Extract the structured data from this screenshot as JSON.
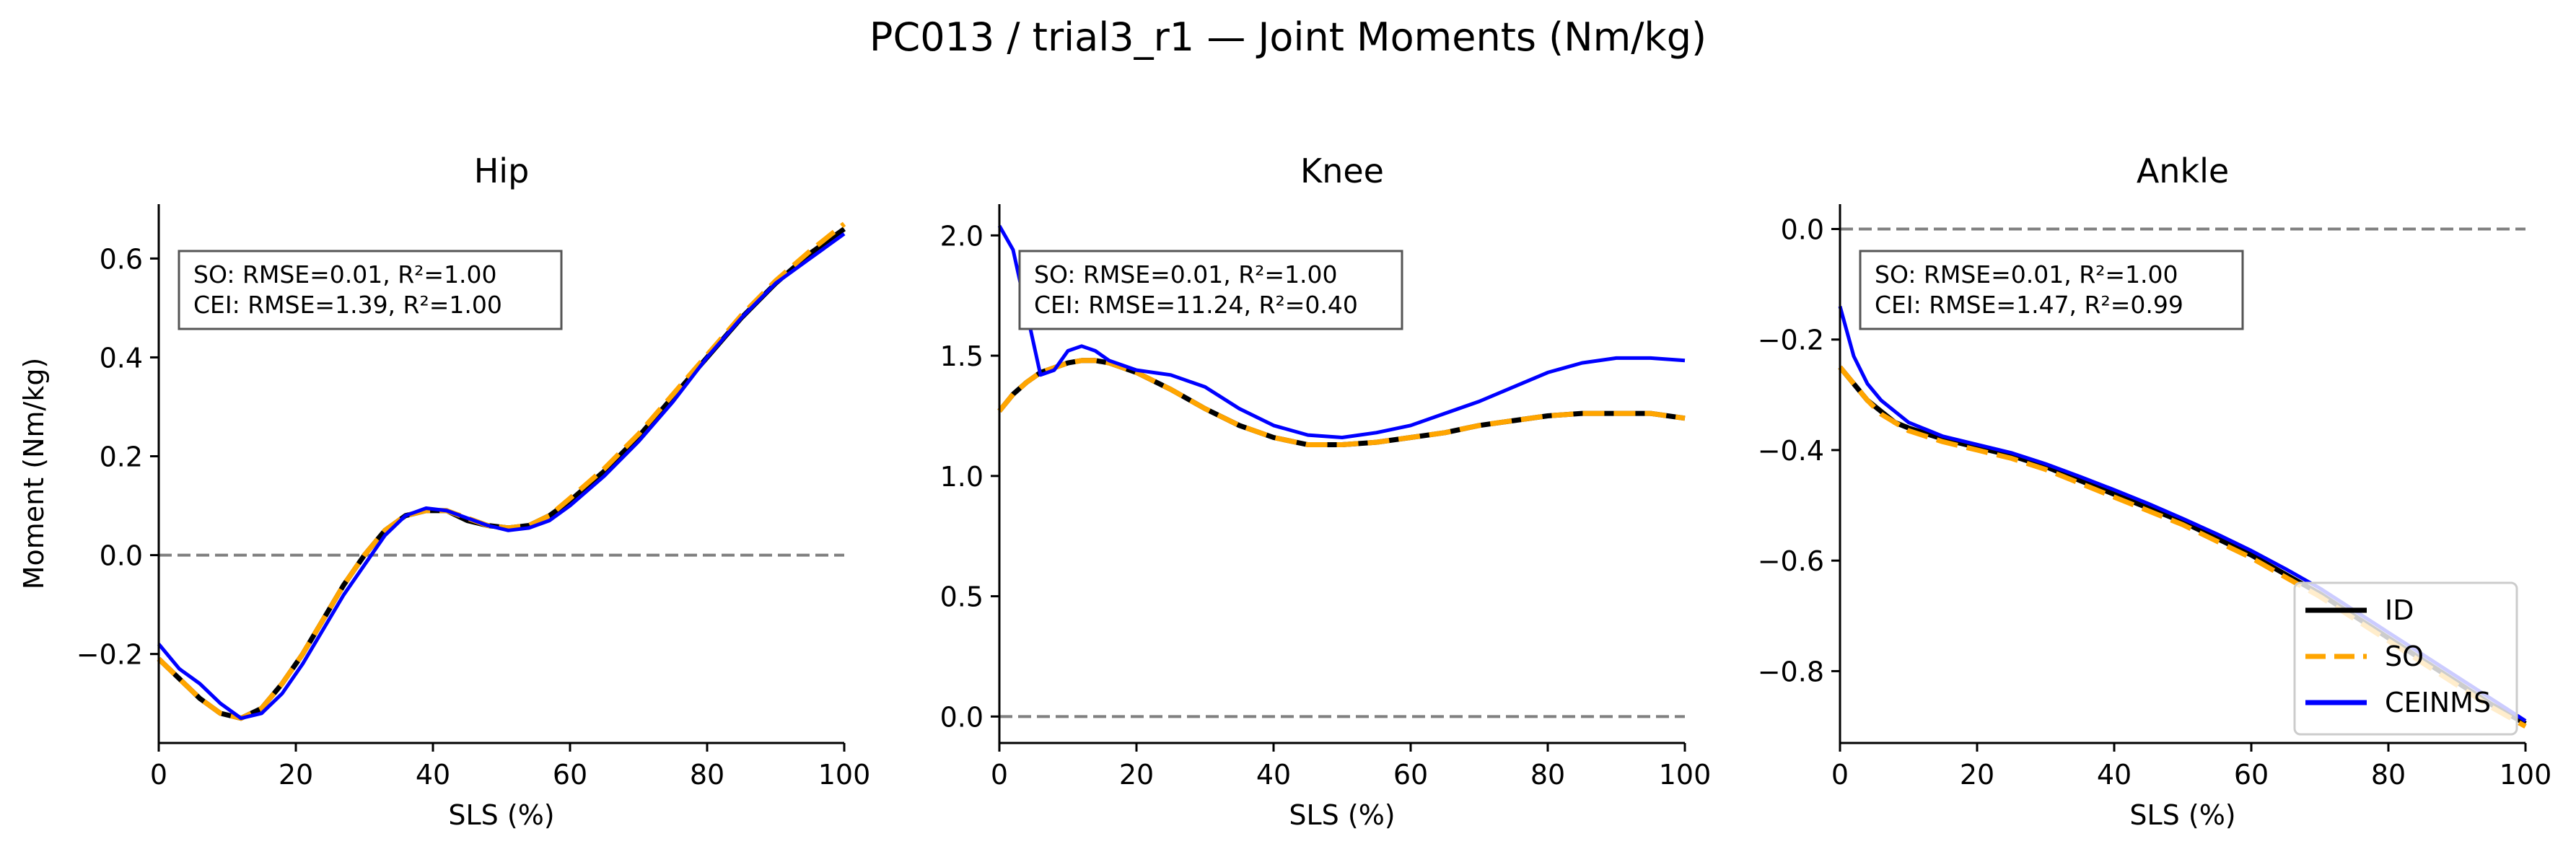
{
  "chart_data": {
    "suptitle": "PC013 / trial3_r1 — Joint Moments (Nm/kg)",
    "colors": {
      "ID": "#000000",
      "SO": "#FFA500",
      "CEINMS": "#0000FF",
      "zero_line": "#808080"
    },
    "legend": {
      "placement": "lower-right of Ankle panel",
      "entries": [
        {
          "name": "ID",
          "style": "solid"
        },
        {
          "name": "SO",
          "style": "dashed"
        },
        {
          "name": "CEINMS",
          "style": "solid"
        }
      ]
    },
    "panels": [
      {
        "type": "line",
        "title": "Hip",
        "xlabel": "SLS (%)",
        "ylabel": "Moment (Nm/kg)",
        "xlim": [
          0,
          100
        ],
        "ylim": [
          -0.38,
          0.71
        ],
        "xticks": [
          0,
          20,
          40,
          60,
          80,
          100
        ],
        "xtick_labels": [
          "0",
          "20",
          "40",
          "60",
          "80",
          "100"
        ],
        "yticks": [
          -0.2,
          0.0,
          0.2,
          0.4,
          0.6
        ],
        "ytick_labels": [
          "−0.2",
          "0.0",
          "0.2",
          "0.4",
          "0.6"
        ],
        "zero_line": true,
        "stats": [
          "SO:  RMSE=0.01, R²=1.00",
          "CEI: RMSE=1.39, R²=1.00"
        ],
        "stats_position": "upper-left",
        "x": [
          0,
          3,
          6,
          9,
          12,
          15,
          18,
          21,
          24,
          27,
          30,
          33,
          36,
          39,
          42,
          45,
          48,
          51,
          54,
          57,
          60,
          65,
          70,
          75,
          80,
          85,
          90,
          95,
          100
        ],
        "series": [
          {
            "name": "ID",
            "values": [
              -0.21,
              -0.25,
              -0.29,
              -0.32,
              -0.33,
              -0.31,
              -0.26,
              -0.2,
              -0.13,
              -0.06,
              0.0,
              0.05,
              0.08,
              0.09,
              0.09,
              0.07,
              0.06,
              0.055,
              0.06,
              0.08,
              0.11,
              0.17,
              0.24,
              0.32,
              0.4,
              0.48,
              0.55,
              0.61,
              0.66
            ]
          },
          {
            "name": "SO",
            "values": [
              -0.21,
              -0.25,
              -0.29,
              -0.32,
              -0.33,
              -0.31,
              -0.26,
              -0.2,
              -0.13,
              -0.06,
              0.0,
              0.05,
              0.08,
              0.09,
              0.09,
              0.075,
              0.06,
              0.055,
              0.06,
              0.08,
              0.115,
              0.175,
              0.245,
              0.325,
              0.405,
              0.485,
              0.555,
              0.615,
              0.67
            ]
          },
          {
            "name": "CEINMS",
            "values": [
              -0.18,
              -0.23,
              -0.26,
              -0.3,
              -0.33,
              -0.32,
              -0.28,
              -0.22,
              -0.15,
              -0.08,
              -0.02,
              0.04,
              0.08,
              0.095,
              0.09,
              0.075,
              0.06,
              0.05,
              0.055,
              0.07,
              0.1,
              0.16,
              0.23,
              0.31,
              0.4,
              0.48,
              0.55,
              0.6,
              0.65
            ]
          }
        ]
      },
      {
        "type": "line",
        "title": "Knee",
        "xlabel": "SLS (%)",
        "ylabel": "",
        "xlim": [
          0,
          100
        ],
        "ylim": [
          -0.11,
          2.13
        ],
        "xticks": [
          0,
          20,
          40,
          60,
          80,
          100
        ],
        "xtick_labels": [
          "0",
          "20",
          "40",
          "60",
          "80",
          "100"
        ],
        "yticks": [
          0.0,
          0.5,
          1.0,
          1.5,
          2.0
        ],
        "ytick_labels": [
          "0.0",
          "0.5",
          "1.0",
          "1.5",
          "2.0"
        ],
        "zero_line": true,
        "stats": [
          "SO:  RMSE=0.01, R²=1.00",
          "CEI: RMSE=11.24, R²=0.40"
        ],
        "stats_position": "upper-left",
        "x": [
          0,
          2,
          4,
          6,
          8,
          10,
          12,
          14,
          16,
          20,
          25,
          30,
          35,
          40,
          45,
          50,
          55,
          60,
          65,
          70,
          75,
          80,
          85,
          90,
          95,
          100
        ],
        "series": [
          {
            "name": "ID",
            "values": [
              1.27,
              1.34,
              1.39,
              1.43,
              1.45,
              1.47,
              1.48,
              1.48,
              1.47,
              1.43,
              1.36,
              1.28,
              1.21,
              1.16,
              1.13,
              1.13,
              1.14,
              1.16,
              1.18,
              1.21,
              1.23,
              1.25,
              1.26,
              1.26,
              1.26,
              1.24
            ]
          },
          {
            "name": "SO",
            "values": [
              1.27,
              1.34,
              1.39,
              1.43,
              1.45,
              1.47,
              1.48,
              1.48,
              1.47,
              1.43,
              1.36,
              1.28,
              1.21,
              1.16,
              1.13,
              1.13,
              1.14,
              1.16,
              1.18,
              1.21,
              1.23,
              1.25,
              1.26,
              1.26,
              1.26,
              1.24
            ]
          },
          {
            "name": "CEINMS",
            "values": [
              2.04,
              1.94,
              1.68,
              1.42,
              1.44,
              1.52,
              1.54,
              1.52,
              1.48,
              1.44,
              1.42,
              1.37,
              1.28,
              1.21,
              1.17,
              1.16,
              1.18,
              1.21,
              1.26,
              1.31,
              1.37,
              1.43,
              1.47,
              1.49,
              1.49,
              1.48
            ]
          }
        ]
      },
      {
        "type": "line",
        "title": "Ankle",
        "xlabel": "SLS (%)",
        "ylabel": "",
        "xlim": [
          0,
          100
        ],
        "ylim": [
          -0.93,
          0.045
        ],
        "xticks": [
          0,
          20,
          40,
          60,
          80,
          100
        ],
        "xtick_labels": [
          "0",
          "20",
          "40",
          "60",
          "80",
          "100"
        ],
        "yticks": [
          -0.8,
          -0.6,
          -0.4,
          -0.2,
          0.0
        ],
        "ytick_labels": [
          "−0.8",
          "−0.6",
          "−0.4",
          "−0.2",
          "0.0"
        ],
        "zero_line": true,
        "stats": [
          "SO:  RMSE=0.01, R²=1.00",
          "CEI: RMSE=1.47, R²=0.99"
        ],
        "stats_position": "upper-left",
        "x": [
          0,
          2,
          4,
          6,
          8,
          10,
          15,
          20,
          25,
          30,
          35,
          40,
          45,
          50,
          55,
          60,
          65,
          70,
          75,
          80,
          85,
          90,
          95,
          100
        ],
        "series": [
          {
            "name": "ID",
            "values": [
              -0.25,
              -0.28,
              -0.31,
              -0.33,
              -0.35,
              -0.36,
              -0.38,
              -0.395,
              -0.41,
              -0.43,
              -0.455,
              -0.48,
              -0.505,
              -0.53,
              -0.56,
              -0.59,
              -0.625,
              -0.66,
              -0.7,
              -0.74,
              -0.78,
              -0.82,
              -0.86,
              -0.895
            ]
          },
          {
            "name": "SO",
            "values": [
              -0.25,
              -0.28,
              -0.31,
              -0.335,
              -0.35,
              -0.365,
              -0.385,
              -0.4,
              -0.415,
              -0.435,
              -0.46,
              -0.485,
              -0.51,
              -0.535,
              -0.565,
              -0.595,
              -0.63,
              -0.665,
              -0.705,
              -0.745,
              -0.785,
              -0.825,
              -0.865,
              -0.9
            ]
          },
          {
            "name": "CEINMS",
            "values": [
              -0.14,
              -0.23,
              -0.28,
              -0.31,
              -0.33,
              -0.35,
              -0.375,
              -0.39,
              -0.405,
              -0.425,
              -0.448,
              -0.472,
              -0.497,
              -0.524,
              -0.552,
              -0.582,
              -0.615,
              -0.65,
              -0.69,
              -0.73,
              -0.77,
              -0.81,
              -0.85,
              -0.89
            ]
          }
        ]
      }
    ]
  }
}
